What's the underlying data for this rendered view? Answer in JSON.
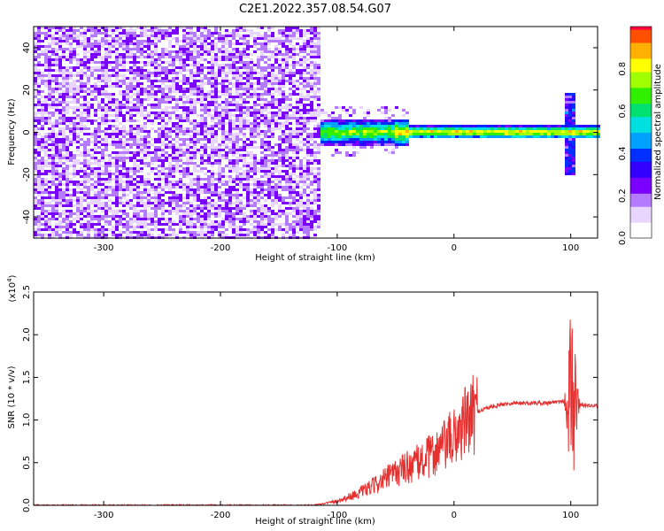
{
  "title": "C2E1.2022.357.08.54.G07",
  "colors": {
    "snr_line": "#e53030",
    "colormap": [
      "#ffffff",
      "#e8d6ff",
      "#b57bff",
      "#7a00ff",
      "#3300ff",
      "#0030ff",
      "#00a0ff",
      "#00e0e0",
      "#00e070",
      "#30f000",
      "#a0ff00",
      "#ffff00",
      "#ffb000",
      "#ff5000",
      "#ff0040"
    ]
  },
  "chart_data": [
    {
      "type": "heatmap",
      "xlabel": "Height of straight line (km)",
      "ylabel": "Frequency (Hz)",
      "xlim": [
        -360,
        123
      ],
      "ylim": [
        -50,
        50
      ],
      "xticks": [
        -300,
        -200,
        -100,
        0,
        100
      ],
      "yticks": [
        40,
        20,
        0,
        -20,
        -40
      ],
      "grid": false,
      "colorbar": {
        "label": "Normalized spectral amplitude",
        "range": [
          0,
          1
        ],
        "ticks": [
          0.0,
          0.2,
          0.4,
          0.6,
          0.8
        ]
      },
      "features": {
        "noise_region_x": [
          -360,
          -113
        ],
        "signal_onset_x": -113,
        "carrier_frequency_hz": 0,
        "carrier_band_halfwidth_hz": 3,
        "spread_region_x": [
          -113,
          -40
        ],
        "spike_x": 100,
        "spike_freq_range_hz": [
          -20,
          18
        ]
      }
    },
    {
      "type": "line",
      "xlabel": "Height of straight line (km)",
      "ylabel": "SNR (10 * v/v)",
      "y_multiplier": "(x10",
      "y_multiplier_exp": "4",
      "y_multiplier_close": ")",
      "xlim": [
        -360,
        123
      ],
      "ylim": [
        0.0,
        2.5
      ],
      "xticks": [
        -300,
        -200,
        -100,
        0,
        100
      ],
      "yticks": [
        0.0,
        0.5,
        1.0,
        1.5,
        2.0,
        2.5
      ],
      "grid": false,
      "series": [
        {
          "x": [
            -360,
            -300,
            -200,
            -120,
            -100,
            -90,
            -80,
            -70,
            -60,
            -50,
            -40,
            -30,
            -20,
            -10,
            0,
            10,
            20,
            30,
            40,
            50,
            60,
            70,
            80,
            90,
            95,
            100,
            105,
            110,
            123
          ],
          "y": [
            0.0,
            0.0,
            0.0,
            0.0,
            0.05,
            0.1,
            0.15,
            0.22,
            0.3,
            0.38,
            0.45,
            0.5,
            0.58,
            0.68,
            0.8,
            0.98,
            1.1,
            1.15,
            1.18,
            1.2,
            1.2,
            1.2,
            1.2,
            1.22,
            1.22,
            1.25,
            1.2,
            1.18,
            1.16
          ]
        }
      ]
    }
  ]
}
